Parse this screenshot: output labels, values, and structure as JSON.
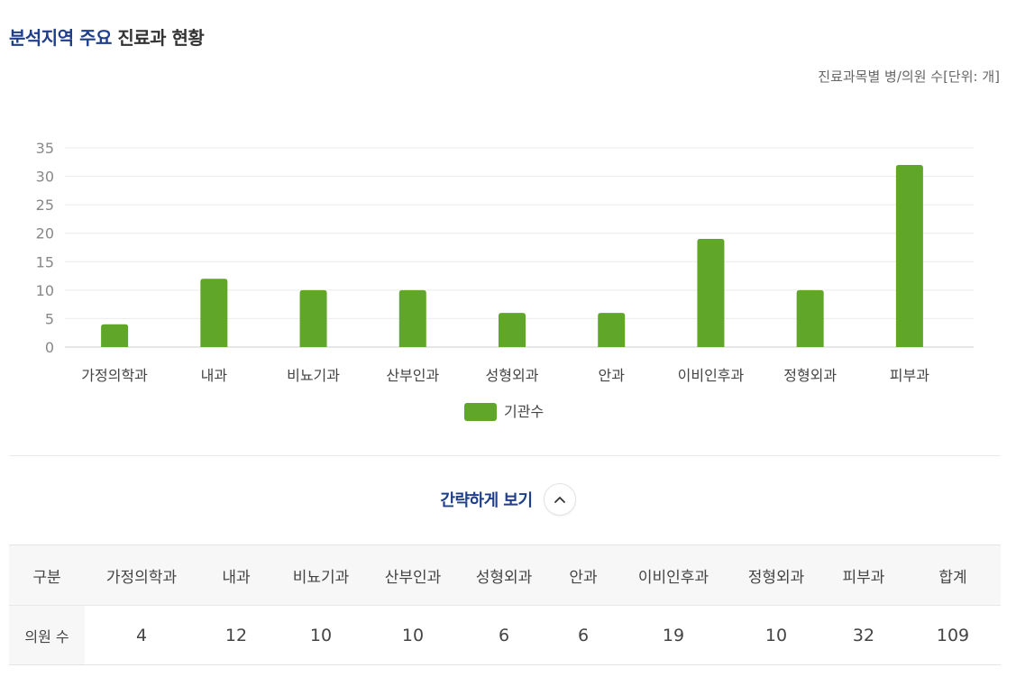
{
  "title": {
    "accent": "분석지역 주요",
    "rest": " 진료과 현황"
  },
  "unit_note": "진료과목별 병/의원 수[단위: 개]",
  "chart_data": {
    "type": "bar",
    "categories": [
      "가정의학과",
      "내과",
      "비뇨기과",
      "산부인과",
      "성형외과",
      "안과",
      "이비인후과",
      "정형외과",
      "피부과"
    ],
    "series": [
      {
        "name": "기관수",
        "values": [
          4,
          12,
          10,
          10,
          6,
          6,
          19,
          10,
          32
        ]
      }
    ],
    "ylim": [
      0,
      35
    ],
    "yticks": [
      0,
      5,
      10,
      15,
      20,
      25,
      30,
      35
    ],
    "grid": true,
    "legend": "bottom",
    "color": "#5fa629"
  },
  "toggle": {
    "label": "간략하게 보기",
    "icon": "chevron-up-icon"
  },
  "table": {
    "headers": [
      "구분",
      "가정의학과",
      "내과",
      "비뇨기과",
      "산부인과",
      "성형외과",
      "안과",
      "이비인후과",
      "정형외과",
      "피부과",
      "합계"
    ],
    "row": {
      "label": "의원 수",
      "values": [
        "4",
        "12",
        "10",
        "10",
        "6",
        "6",
        "19",
        "10",
        "32",
        "109"
      ]
    }
  }
}
